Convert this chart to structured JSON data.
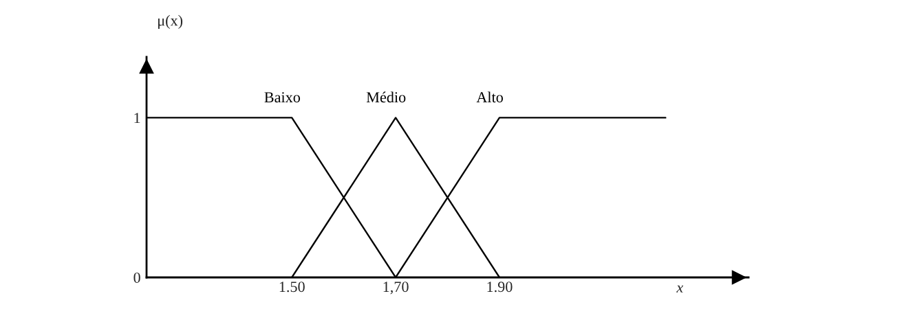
{
  "chart_data": {
    "type": "line",
    "xlabel": "x",
    "ylabel": "μ(x)",
    "xlim": [
      1.22,
      2.38
    ],
    "ylim": [
      0,
      1.38
    ],
    "xticks": [
      {
        "value": 1.5,
        "label": "1.50"
      },
      {
        "value": 1.7,
        "label": "1,70"
      },
      {
        "value": 1.9,
        "label": "1.90"
      }
    ],
    "yticks": [
      0,
      1
    ],
    "grid": false,
    "legend": false,
    "marker": "none",
    "line_style": "solid",
    "series": [
      {
        "name": "Baixo",
        "color": "#000000",
        "x": [
          1.22,
          1.5,
          1.7
        ],
        "values": [
          1,
          1,
          0
        ]
      },
      {
        "name": "Médio",
        "color": "#000000",
        "x": [
          1.5,
          1.7,
          1.9
        ],
        "values": [
          0,
          1,
          0
        ]
      },
      {
        "name": "Alto",
        "color": "#000000",
        "x": [
          1.7,
          1.9,
          2.22
        ],
        "values": [
          0,
          1,
          1
        ]
      }
    ]
  }
}
